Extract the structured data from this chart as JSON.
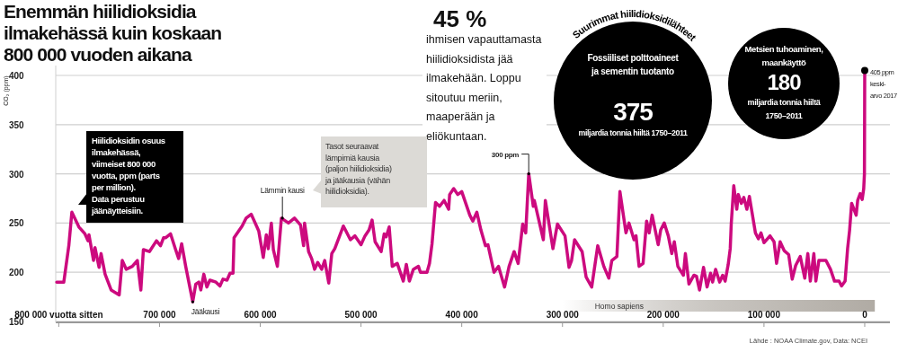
{
  "chart_data": {
    "type": "line",
    "title": "Enemmän hiilidioksidia\nilmakehässä kuin koskaan\n800 000 vuoden aikana",
    "ylabel": "CO₂ (ppm)",
    "x": [
      802000,
      795000,
      790000,
      787000,
      780000,
      774000,
      771000,
      770000,
      765500,
      764000,
      760000,
      758000,
      754000,
      748000,
      740000,
      737000,
      733000,
      727000,
      722000,
      718500,
      716000,
      710000,
      703000,
      699000,
      696000,
      694000,
      689000,
      684000,
      681000,
      678000,
      674000,
      667000,
      664000,
      661000,
      659000,
      656000,
      653000,
      650000,
      644000,
      640000,
      637000,
      633000,
      630000,
      627000,
      626000,
      618000,
      614000,
      609000,
      601500,
      597000,
      594000,
      592000,
      589000,
      587000,
      583000,
      579000,
      572000,
      566000,
      560000,
      557000,
      556000,
      552000,
      549000,
      546000,
      543000,
      539000,
      536000,
      532000,
      529000,
      526000,
      517500,
      510500,
      506000,
      500000,
      496000,
      492000,
      489000,
      486000,
      480000,
      477000,
      475000,
      472000,
      469000,
      464000,
      458000,
      455000,
      452000,
      448000,
      443000,
      441000,
      434500,
      432000,
      429500,
      426000,
      422000,
      417500,
      413000,
      412000,
      408000,
      404000,
      400000,
      392000,
      389000,
      385000,
      381000,
      376500,
      374000,
      368000,
      363500,
      357500,
      353000,
      348000,
      344000,
      339500,
      336500,
      333500,
      329000,
      328000,
      319000,
      317000,
      309500,
      305000,
      297500,
      293500,
      291000,
      288000,
      280500,
      276500,
      271000,
      265000,
      259000,
      254000,
      251000,
      246000,
      243000,
      237000,
      234000,
      229000,
      227000,
      224000,
      220000,
      216500,
      214000,
      211000,
      205000,
      202500,
      199000,
      195000,
      191500,
      189000,
      185500,
      180000,
      178000,
      174500,
      169500,
      167000,
      164000,
      160000,
      156500,
      153000,
      151000,
      148000,
      144000,
      141000,
      138500,
      135500,
      133500,
      132500,
      130000,
      127000,
      125500,
      122500,
      120000,
      117000,
      114500,
      108500,
      105500,
      103000,
      100000,
      94000,
      90000,
      87500,
      84000,
      80000,
      75500,
      72000,
      68500,
      64000,
      59500,
      56500,
      54000,
      50500,
      48500,
      45500,
      38500,
      34000,
      30000,
      25500,
      23000,
      19500,
      17000,
      15000,
      13000,
      8500,
      7000,
      4500,
      2500,
      1000,
      300,
      0
    ],
    "values": [
      190,
      190,
      227,
      261,
      246,
      239,
      232,
      238,
      212,
      225,
      205,
      219,
      198,
      182,
      177,
      212,
      203,
      206,
      212,
      182,
      223,
      221,
      232,
      227,
      235,
      235,
      239,
      223,
      214,
      229,
      206,
      170,
      188,
      190,
      182,
      198,
      185,
      192,
      190,
      186,
      193,
      192,
      199,
      199,
      235,
      247,
      255,
      259,
      242,
      215,
      238,
      224,
      250,
      223,
      206,
      255,
      250,
      255,
      248,
      227,
      250,
      221,
      214,
      203,
      210,
      203,
      212,
      189,
      219,
      224,
      247,
      233,
      237,
      228,
      237,
      243,
      253,
      231,
      221,
      239,
      236,
      246,
      206,
      209,
      191,
      208,
      191,
      203,
      206,
      200,
      200,
      209,
      229,
      271,
      267,
      273,
      264,
      279,
      285,
      279,
      282,
      258,
      252,
      261,
      243,
      227,
      228,
      200,
      206,
      185,
      206,
      221,
      209,
      249,
      240,
      300,
      267,
      273,
      233,
      273,
      224,
      249,
      237,
      205,
      212,
      233,
      221,
      195,
      185,
      227,
      206,
      194,
      212,
      216,
      282,
      240,
      250,
      233,
      237,
      206,
      209,
      252,
      240,
      258,
      228,
      243,
      250,
      237,
      219,
      231,
      206,
      197,
      219,
      188,
      197,
      196,
      182,
      205,
      185,
      199,
      190,
      203,
      190,
      197,
      191,
      208,
      224,
      249,
      288,
      264,
      279,
      270,
      276,
      264,
      277,
      240,
      234,
      240,
      230,
      237,
      231,
      209,
      231,
      222,
      218,
      193,
      207,
      216,
      194,
      219,
      191,
      219,
      191,
      212,
      212,
      203,
      191,
      191,
      186,
      191,
      224,
      243,
      270,
      258,
      273,
      280,
      274,
      285,
      300,
      405
    ],
    "color": "#cc0a7e",
    "xlim": [
      803000,
      -25000
    ],
    "xticks": [
      {
        "value": 800000,
        "label": "800 000 vuotta sitten"
      },
      {
        "value": 700000,
        "label": "700 000"
      },
      {
        "value": 600000,
        "label": "600 000"
      },
      {
        "value": 500000,
        "label": "500 000"
      },
      {
        "value": 400000,
        "label": "400 000"
      },
      {
        "value": 300000,
        "label": "300 000"
      },
      {
        "value": 200000,
        "label": "200 000"
      },
      {
        "value": 100000,
        "label": "100 000"
      },
      0
    ],
    "ylim": [
      150,
      410
    ],
    "yticks": [
      150,
      200,
      250,
      300,
      350,
      400
    ],
    "grid": "y",
    "bands": [
      {
        "axis": "x",
        "from": 300000,
        "to": -10000,
        "label": "Homo sapiens",
        "color": "#b0aba4"
      }
    ],
    "annotations": [
      "Hiilidioksidin osuus\nilmakehässä,\nviimeiset 800 000\nvuotta, ppm (parts\nper million).\nData perustuu\njäänäytteisiin.",
      "Tasot seuraavat\nlämpimiä kausia\n(paljon hiilidioksidia)\nja jääkausia (vähän\nhiilidioksidia).",
      {
        "text": "Lämmin kausi",
        "x": 578000,
        "y": 255
      },
      {
        "text": "Jääkausi",
        "x": 667000,
        "y": 170
      },
      {
        "text": "300 ppm",
        "x": 333500,
        "y": 300
      },
      {
        "text": "405 ppm\nkeski-\narvo 2017",
        "x": 0,
        "y": 405
      },
      "45 %",
      "ihmisen vapauttamasta\nhiilidioksidista jää\nilmakehään. Loppu\nsitoutuu meriin,\nmaaperään ja\neliökuntaan.",
      "Suurimmat hiilidioksidilähteet",
      "Fossiiliset polttoaineet\nja sementin tuotanto",
      "375",
      "miljardia tonnia hiiltä 1750–2011",
      "Metsien tuhoaminen,\nmaankäyttö",
      "180",
      "miljardia  tonnia hiiltä\n1750–2011",
      "Lähde : NOAA Climate.gov, Data: NCEI"
    ]
  }
}
